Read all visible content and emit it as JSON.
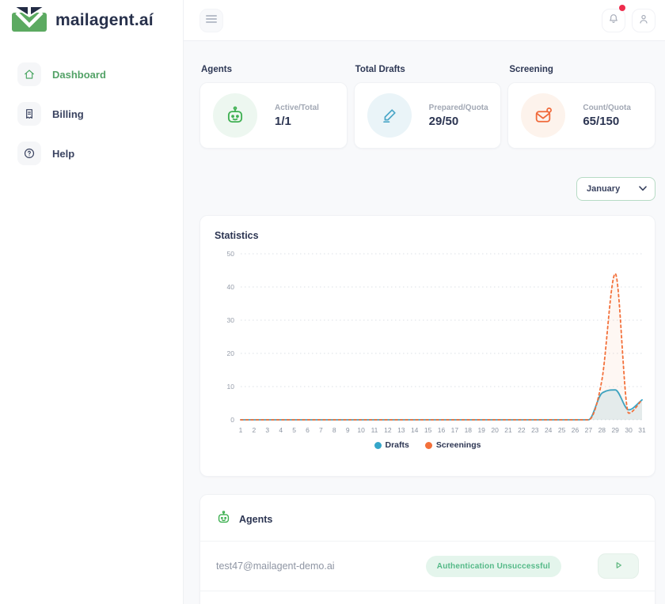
{
  "brand": {
    "name": "mailagent.aí"
  },
  "topbar": {
    "icons": {
      "menu": "hamburger-icon",
      "notifications": "bell-icon",
      "account": "user-icon"
    },
    "notification_dot_color": "#ee2c4c"
  },
  "sidebar": {
    "items": [
      {
        "label": "Dashboard",
        "icon": "home-icon",
        "active": true
      },
      {
        "label": "Billing",
        "icon": "receipt-icon",
        "active": false
      },
      {
        "label": "Help",
        "icon": "help-circle-icon",
        "active": false
      }
    ]
  },
  "stats": {
    "sections": [
      {
        "title": "Agents",
        "icon": "robot-icon",
        "metric_label": "Active/Total",
        "metric_value": "1/1",
        "accent": "#3fb052",
        "accent_bg": "#edf7f0"
      },
      {
        "title": "Total Drafts",
        "icon": "pencil-icon",
        "metric_label": "Prepared/Quota",
        "metric_value": "29/50",
        "accent": "#4aa6c7",
        "accent_bg": "#eaf4f8"
      },
      {
        "title": "Screening",
        "icon": "mail-icon",
        "metric_label": "Count/Quota",
        "metric_value": "65/150",
        "accent": "#f0693a",
        "accent_bg": "#fdf3ec"
      }
    ]
  },
  "month_filter": {
    "selected": "January",
    "icon": "chevron-down-icon"
  },
  "chart_data": {
    "type": "line",
    "title": "Statistics",
    "x": [
      1,
      2,
      3,
      4,
      5,
      6,
      7,
      8,
      9,
      10,
      11,
      12,
      13,
      14,
      15,
      16,
      17,
      18,
      19,
      20,
      21,
      22,
      23,
      24,
      25,
      26,
      27,
      28,
      29,
      30,
      31
    ],
    "series": [
      {
        "name": "Drafts",
        "color": "#35a6c9",
        "style": "solid",
        "values": [
          0,
          0,
          0,
          0,
          0,
          0,
          0,
          0,
          0,
          0,
          0,
          0,
          0,
          0,
          0,
          0,
          0,
          0,
          0,
          0,
          0,
          0,
          0,
          0,
          0,
          0,
          0,
          8,
          9,
          3,
          6
        ]
      },
      {
        "name": "Screenings",
        "color": "#f3703a",
        "style": "dashed",
        "values": [
          0,
          0,
          0,
          0,
          0,
          0,
          0,
          0,
          0,
          0,
          0,
          0,
          0,
          0,
          0,
          0,
          0,
          0,
          0,
          0,
          0,
          0,
          0,
          0,
          0,
          0,
          0,
          12,
          44,
          2,
          6
        ]
      }
    ],
    "xlabel": "",
    "ylabel": "",
    "ylim": [
      0,
      50
    ],
    "yticks": [
      0,
      10,
      20,
      30,
      40,
      50
    ],
    "grid": "dotted-horizontal",
    "legend_position": "bottom-center"
  },
  "agents": {
    "title": "Agents",
    "icon": "robot-icon",
    "rows": [
      {
        "email": "test47@mailagent-demo.ai",
        "status": "Authentication Unsuccessful",
        "action_icon": "play-icon"
      }
    ]
  }
}
